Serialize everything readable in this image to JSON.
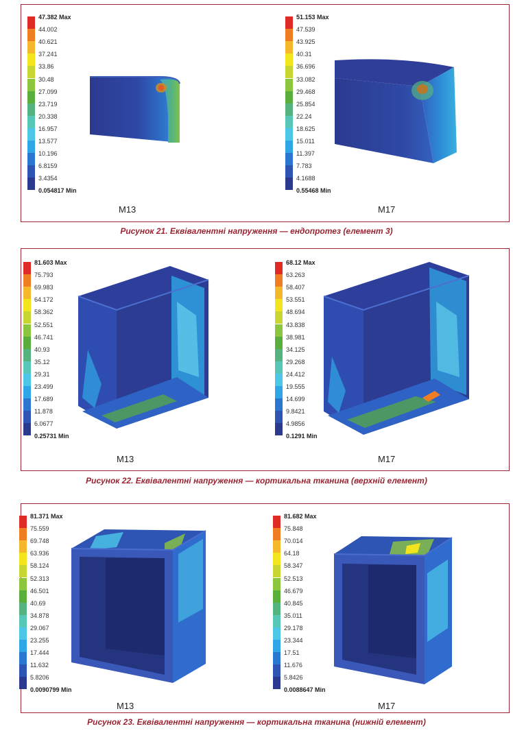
{
  "colors": {
    "frame": "#9b2432",
    "scale": [
      "#2b3a8f",
      "#2e55b4",
      "#2a76d0",
      "#2fa7e6",
      "#4cc7e8",
      "#57c7b8",
      "#55b380",
      "#5aae3c",
      "#8cc63f",
      "#c7d630",
      "#f2e51d",
      "#f5b82a",
      "#ef7d22",
      "#e02a26"
    ]
  },
  "figures": [
    {
      "caption": "Рисунок 21. Еквівалентні напруження — ендопротез (елемент 3)",
      "models": [
        {
          "label": "M13",
          "legend": {
            "max": "47.382 Max",
            "ticks": [
              "44.002",
              "40.621",
              "37.241",
              "33.86",
              "30.48",
              "27.099",
              "23.719",
              "20.338",
              "16.957",
              "13.577",
              "10.196",
              "6.8159",
              "3.4354"
            ],
            "min": "0.054817 Min"
          }
        },
        {
          "label": "M17",
          "legend": {
            "max": "51.153 Max",
            "ticks": [
              "47.539",
              "43.925",
              "40.31",
              "36.696",
              "33.082",
              "29.468",
              "25.854",
              "22.24",
              "18.625",
              "15.011",
              "11.397",
              "7.783",
              "4.1688"
            ],
            "min": "0.55468 Min"
          }
        }
      ]
    },
    {
      "caption": "Рисунок 22. Еквівалентні напруження — кортикальна тканина (верхній елемент)",
      "models": [
        {
          "label": "M13",
          "legend": {
            "max": "81.603 Max",
            "ticks": [
              "75.793",
              "69.983",
              "64.172",
              "58.362",
              "52.551",
              "46.741",
              "40.93",
              "35.12",
              "29.31",
              "23.499",
              "17.689",
              "11.878",
              "6.0677"
            ],
            "min": "0.25731 Min"
          }
        },
        {
          "label": "M17",
          "legend": {
            "max": "68.12 Max",
            "ticks": [
              "63.263",
              "58.407",
              "53.551",
              "48.694",
              "43.838",
              "38.981",
              "34.125",
              "29.268",
              "24.412",
              "19.555",
              "14.699",
              "9.8421",
              "4.9856"
            ],
            "min": "0.1291 Min"
          }
        }
      ]
    },
    {
      "caption": "Рисунок 23. Еквівалентні напруження — кортикальна тканина (нижній елемент)",
      "models": [
        {
          "label": "M13",
          "legend": {
            "max": "81.371 Max",
            "ticks": [
              "75.559",
              "69.748",
              "63.936",
              "58.124",
              "52.313",
              "46.501",
              "40.69",
              "34.878",
              "29.067",
              "23.255",
              "17.444",
              "11.632",
              "5.8206"
            ],
            "min": "0.0090799 Min"
          }
        },
        {
          "label": "M17",
          "legend": {
            "max": "81.682 Max",
            "ticks": [
              "75.848",
              "70.014",
              "64.18",
              "58.347",
              "52.513",
              "46.679",
              "40.845",
              "35.011",
              "29.178",
              "23.344",
              "17.51",
              "11.676",
              "5.8426"
            ],
            "min": "0.0088647 Min"
          }
        }
      ]
    }
  ]
}
